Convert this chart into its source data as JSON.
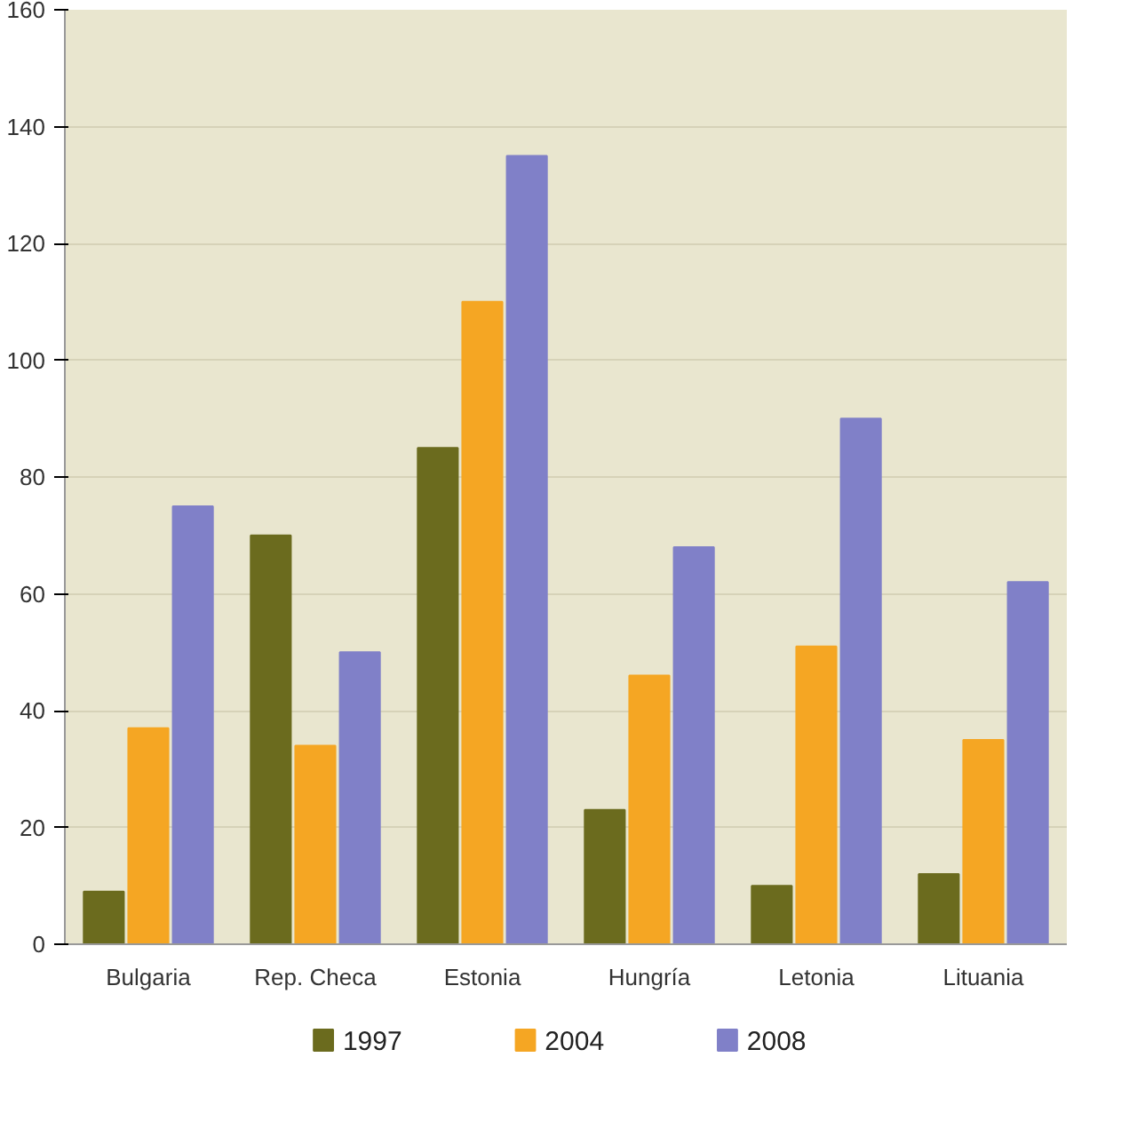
{
  "chart_data": {
    "type": "bar",
    "categories": [
      "Bulgaria",
      "Rep. Checa",
      "Estonia",
      "Hungría",
      "Letonia",
      "Lituania"
    ],
    "series": [
      {
        "name": "1997",
        "color": "#6b6b1e",
        "values": [
          9,
          70,
          85,
          23,
          10,
          12
        ]
      },
      {
        "name": "2004",
        "color": "#f5a623",
        "values": [
          37,
          34,
          110,
          46,
          51,
          35
        ]
      },
      {
        "name": "2008",
        "color": "#8080c8",
        "values": [
          75,
          50,
          135,
          68,
          90,
          62
        ]
      }
    ],
    "ylim": [
      0,
      160
    ],
    "yticks": [
      0,
      20,
      40,
      60,
      80,
      100,
      120,
      140,
      160
    ],
    "grid": "y",
    "legend": "bottom"
  }
}
